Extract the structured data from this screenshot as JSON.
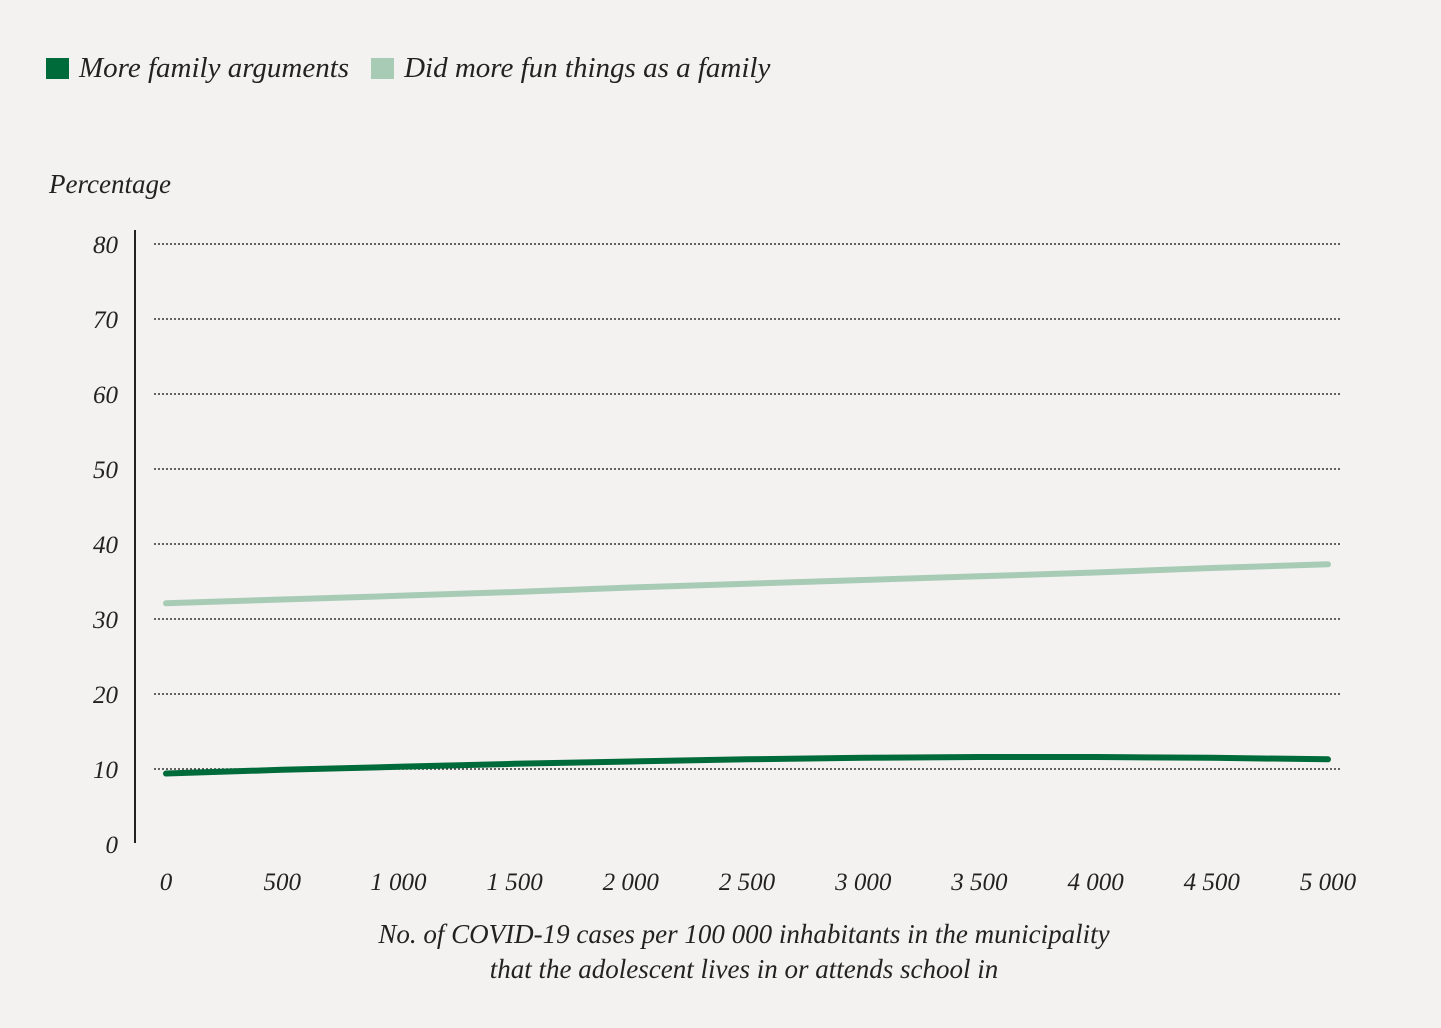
{
  "chart_data": {
    "type": "line",
    "ylabel": "Percentage",
    "xlabel": [
      "No. of COVID-19 cases per 100 000 inhabitants in the municipality",
      "that the adolescent lives in or attends school in"
    ],
    "x": [
      0,
      500,
      1000,
      1500,
      2000,
      2500,
      3000,
      3500,
      4000,
      4500,
      5000
    ],
    "x_tick_labels": [
      "0",
      "500",
      "1 000",
      "1 500",
      "2 000",
      "2 500",
      "3 000",
      "3 500",
      "4 000",
      "4 500",
      "5 000"
    ],
    "y_tick_labels": [
      "0",
      "10",
      "20",
      "30",
      "40",
      "50",
      "60",
      "70",
      "80"
    ],
    "xlim": [
      0,
      5000
    ],
    "ylim": [
      0,
      80
    ],
    "grid": "horizontal dotted",
    "legend_position": "top-left",
    "series": [
      {
        "name": "More family arguments",
        "color": "#006b3a",
        "values": [
          9.4,
          9.9,
          10.3,
          10.7,
          11.0,
          11.3,
          11.5,
          11.6,
          11.6,
          11.5,
          11.3
        ]
      },
      {
        "name": "Did more fun things as a family",
        "color": "#a8cbb5",
        "values": [
          32.1,
          32.6,
          33.1,
          33.6,
          34.2,
          34.7,
          35.2,
          35.7,
          36.2,
          36.8,
          37.3
        ]
      }
    ]
  }
}
